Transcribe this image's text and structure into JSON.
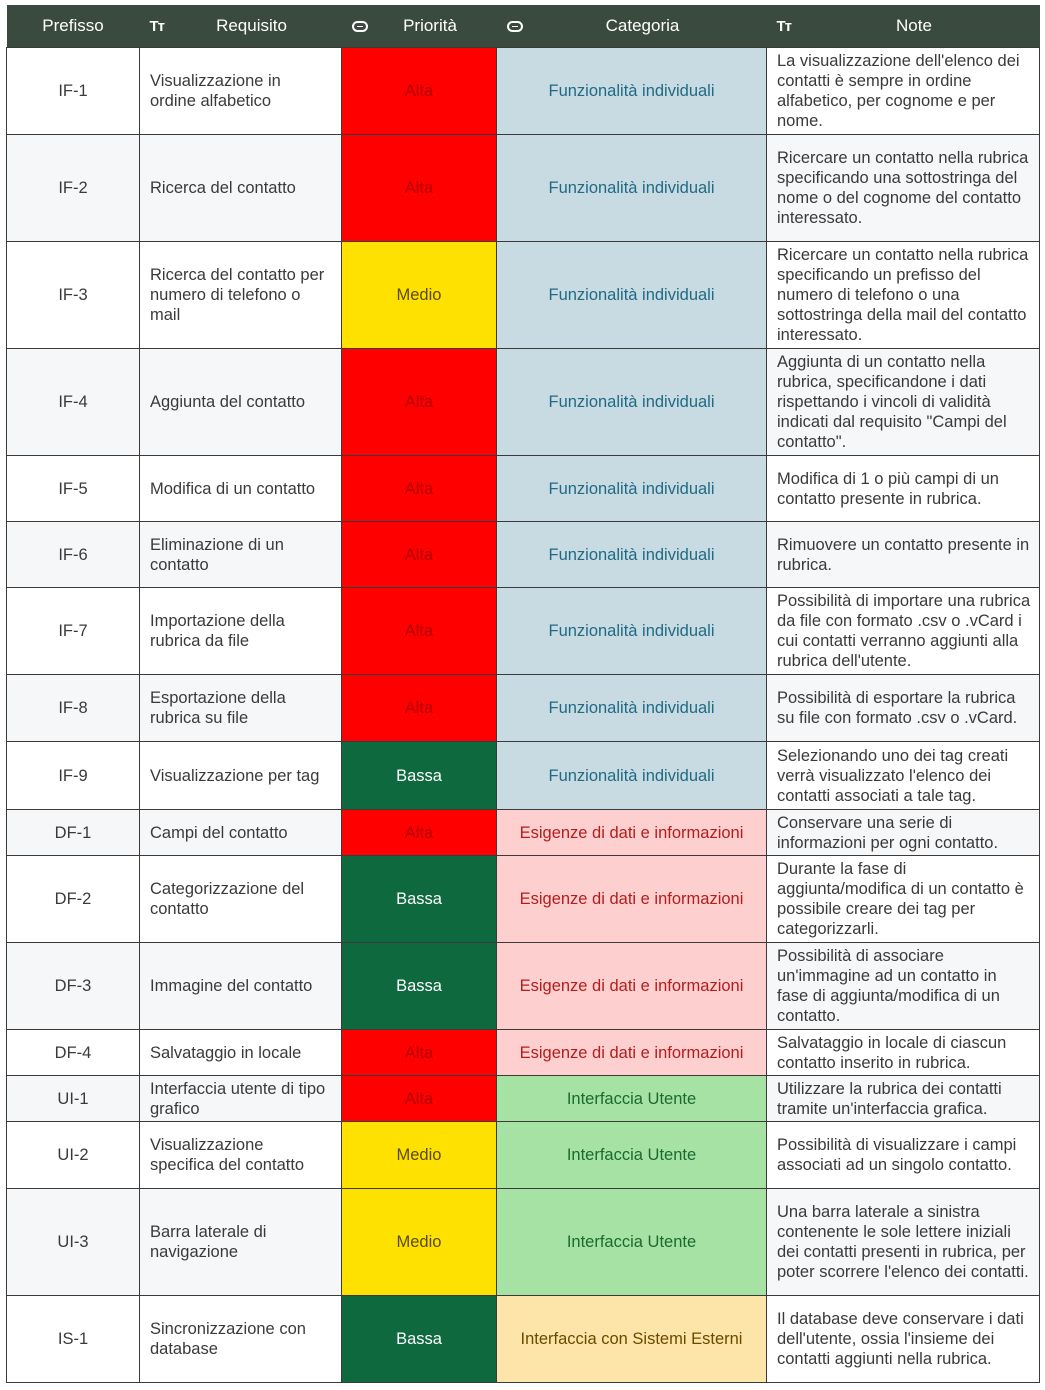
{
  "headers": {
    "prefisso": "Prefisso",
    "requisito": "Requisito",
    "priorita": "Priorità",
    "categoria": "Categoria",
    "note": "Note"
  },
  "colors": {
    "header_bg": "#3b4a3f",
    "alta": "#ff0000",
    "medio": "#ffe100",
    "bassa": "#0e6a3e",
    "funzionalita": "#c9dbe2",
    "esigenze": "#fdd0cf",
    "interfaccia_utente": "#a6e2a3",
    "sistemi_esterni": "#fde4a8"
  },
  "rows": [
    {
      "prefisso": "IF-1",
      "requisito": "Visualizzazione in ordine alfabetico",
      "priorita": "Alta",
      "categoria": "Funzionalità individuali",
      "note": "La visualizzazione dell'elenco dei contatti è sempre in ordine alfabetico, per cognome e per nome."
    },
    {
      "prefisso": "IF-2",
      "requisito": "Ricerca del contatto",
      "priorita": "Alta",
      "categoria": "Funzionalità individuali",
      "note": "Ricercare un contatto nella rubrica specificando una sottostringa del nome o del cognome del contatto interessato."
    },
    {
      "prefisso": "IF-3",
      "requisito": "Ricerca del contatto per numero di telefono o mail",
      "priorita": "Medio",
      "categoria": "Funzionalità individuali",
      "note": "Ricercare un contatto nella rubrica specificando un prefisso del numero di telefono o una sottostringa della mail del contatto interessato."
    },
    {
      "prefisso": "IF-4",
      "requisito": "Aggiunta del contatto",
      "priorita": "Alta",
      "categoria": "Funzionalità individuali",
      "note": "Aggiunta di un contatto nella rubrica, specificandone i dati rispettando i vincoli di validità indicati dal requisito \"Campi del contatto\"."
    },
    {
      "prefisso": "IF-5",
      "requisito": "Modifica di un contatto",
      "priorita": "Alta",
      "categoria": "Funzionalità individuali",
      "note": "Modifica di 1 o più campi di un contatto presente in rubrica."
    },
    {
      "prefisso": "IF-6",
      "requisito": "Eliminazione di un contatto",
      "priorita": "Alta",
      "categoria": "Funzionalità individuali",
      "note": "Rimuovere un contatto presente in rubrica."
    },
    {
      "prefisso": "IF-7",
      "requisito": "Importazione della rubrica da file",
      "priorita": "Alta",
      "categoria": "Funzionalità individuali",
      "note": "Possibilità di importare una rubrica da file con formato .csv o .vCard i cui contatti verranno aggiunti alla rubrica dell'utente."
    },
    {
      "prefisso": "IF-8",
      "requisito": "Esportazione della rubrica su file",
      "priorita": "Alta",
      "categoria": "Funzionalità individuali",
      "note": "Possibilità di esportare la rubrica su file con formato .csv o .vCard."
    },
    {
      "prefisso": "IF-9",
      "requisito": "Visualizzazione per tag",
      "priorita": "Bassa",
      "categoria": "Funzionalità individuali",
      "note": "Selezionando uno dei tag creati verrà visualizzato l'elenco dei contatti associati a tale tag."
    },
    {
      "prefisso": "DF-1",
      "requisito": "Campi del contatto",
      "priorita": "Alta",
      "categoria": "Esigenze di dati e informazioni",
      "note": "Conservare una serie di informazioni per ogni contatto."
    },
    {
      "prefisso": "DF-2",
      "requisito": "Categorizzazione del contatto",
      "priorita": "Bassa",
      "categoria": "Esigenze di dati e informazioni",
      "note": "Durante la fase di aggiunta/modifica di un contatto è possibile creare dei tag per categorizzarli."
    },
    {
      "prefisso": "DF-3",
      "requisito": "Immagine del contatto",
      "priorita": "Bassa",
      "categoria": "Esigenze di dati e informazioni",
      "note": "Possibilità di associare un'immagine ad un contatto in fase di aggiunta/modifica di un contatto."
    },
    {
      "prefisso": "DF-4",
      "requisito": "Salvataggio in locale",
      "priorita": "Alta",
      "categoria": "Esigenze di dati e informazioni",
      "note": "Salvataggio in locale di ciascun contatto inserito in rubrica."
    },
    {
      "prefisso": "UI-1",
      "requisito": "Interfaccia utente di tipo grafico",
      "priorita": "Alta",
      "categoria": "Interfaccia Utente",
      "note": "Utilizzare la rubrica dei contatti tramite un'interfaccia grafica."
    },
    {
      "prefisso": "UI-2",
      "requisito": "Visualizzazione specifica del contatto",
      "priorita": "Medio",
      "categoria": "Interfaccia Utente",
      "note": "Possibilità di visualizzare i campi associati ad un singolo contatto."
    },
    {
      "prefisso": "UI-3",
      "requisito": "Barra laterale di navigazione",
      "priorita": "Medio",
      "categoria": "Interfaccia Utente",
      "note": "Una barra laterale a sinistra contenente le sole lettere iniziali dei contatti presenti in rubrica, per poter scorrere l'elenco dei contatti."
    },
    {
      "prefisso": "IS-1",
      "requisito": "Sincronizzazione con database",
      "priorita": "Bassa",
      "categoria": "Interfaccia con Sistemi Esterni",
      "note": "Il database deve conservare i dati dell'utente, ossia l'insieme dei contatti aggiunti nella rubrica."
    }
  ]
}
